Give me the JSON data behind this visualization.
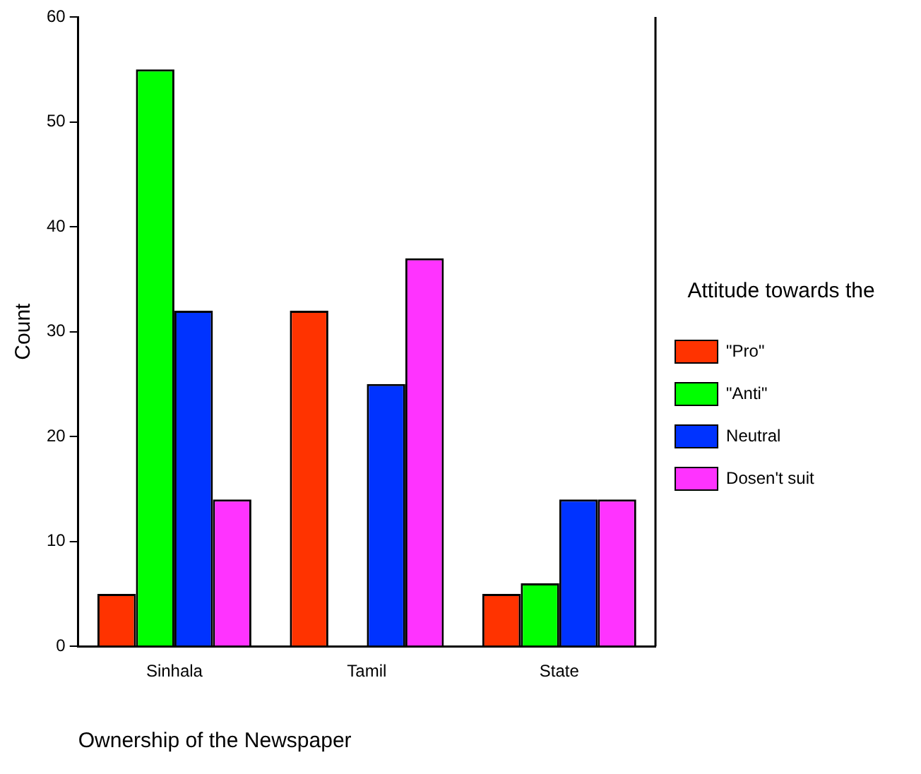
{
  "chart_data": {
    "type": "bar",
    "xlabel": "Ownership of the Newspaper",
    "ylabel": "Count",
    "legend_title": "Attitude towards the",
    "categories": [
      "Sinhala",
      "Tamil",
      "State"
    ],
    "series": [
      {
        "name": "\"Pro\"",
        "color": "#ff3300",
        "values": [
          5,
          32,
          5
        ]
      },
      {
        "name": "\"Anti\"",
        "color": "#00ff00",
        "values": [
          55,
          0,
          6
        ]
      },
      {
        "name": "Neutral",
        "color": "#0033ff",
        "values": [
          32,
          25,
          14
        ]
      },
      {
        "name": "Dosen't suit",
        "color": "#ff33ff",
        "values": [
          14,
          37,
          14
        ]
      }
    ],
    "ylim": [
      0,
      60
    ],
    "yticks": [
      0,
      10,
      20,
      30,
      40,
      50,
      60
    ],
    "grid": false,
    "legend": "right"
  }
}
